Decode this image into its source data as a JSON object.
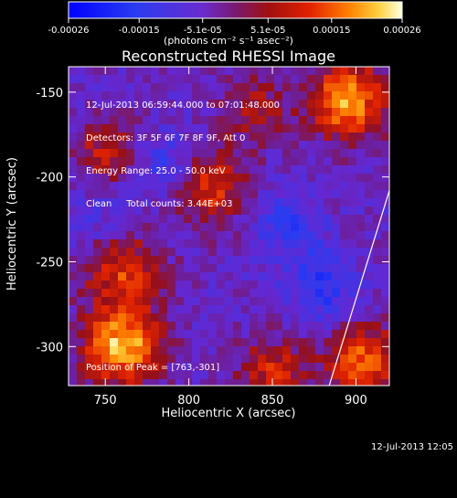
{
  "colorbar": {
    "ticks": [
      "-0.00026",
      "-0.00015",
      "-5.1e-05",
      "5.1e-05",
      "0.00015",
      "0.00026"
    ],
    "units": "(photons cm⁻² s⁻¹ asec⁻²)"
  },
  "chart_data": {
    "type": "heatmap",
    "title": "Reconstructed RHESSI Image",
    "xlabel": "Heliocentric X (arcsec)",
    "ylabel": "Heliocentric Y (arcsec)",
    "xlim": [
      728,
      920
    ],
    "ylim": [
      -323,
      -135
    ],
    "x_ticks": [
      750,
      800,
      850,
      900
    ],
    "y_ticks": [
      -150,
      -200,
      -250,
      -300
    ],
    "colorbar_range": [
      -0.00026,
      0.00026
    ],
    "peak": [
      763,
      -301
    ],
    "limb_line": [
      [
        884,
        -323
      ],
      [
        920,
        -208
      ]
    ],
    "features": [
      {
        "x": 895,
        "y": -155,
        "value": 0.00024
      },
      {
        "x": 760,
        "y": -300,
        "value": 0.00026
      },
      {
        "x": 810,
        "y": -205,
        "value": 0.00018
      },
      {
        "x": 760,
        "y": -255,
        "value": 0.00016
      },
      {
        "x": 750,
        "y": -185,
        "value": 0.00012
      },
      {
        "x": 905,
        "y": -310,
        "value": 0.0002
      },
      {
        "x": 840,
        "y": -160,
        "value": 0.0001
      },
      {
        "x": 850,
        "y": -315,
        "value": 0.00014
      },
      {
        "x": 790,
        "y": -195,
        "value": -0.00012
      },
      {
        "x": 860,
        "y": -230,
        "value": -0.0001
      },
      {
        "x": 880,
        "y": -265,
        "value": -0.00012
      },
      {
        "x": 745,
        "y": -225,
        "value": -6e-05
      }
    ]
  },
  "info": {
    "line1": "12-Jul-2013 06:59:44.000 to 07:01:48.000",
    "line2": "Detectors: 3F 5F 6F 7F 8F 9F, Att 0",
    "line3": "Energy Range: 25.0 - 50.0 keV",
    "line4": "Clean     Total counts: 3.44E+03",
    "peak": "Position of Peak = [763,-301]"
  },
  "timestamp": "12-Jul-2013 12:05"
}
